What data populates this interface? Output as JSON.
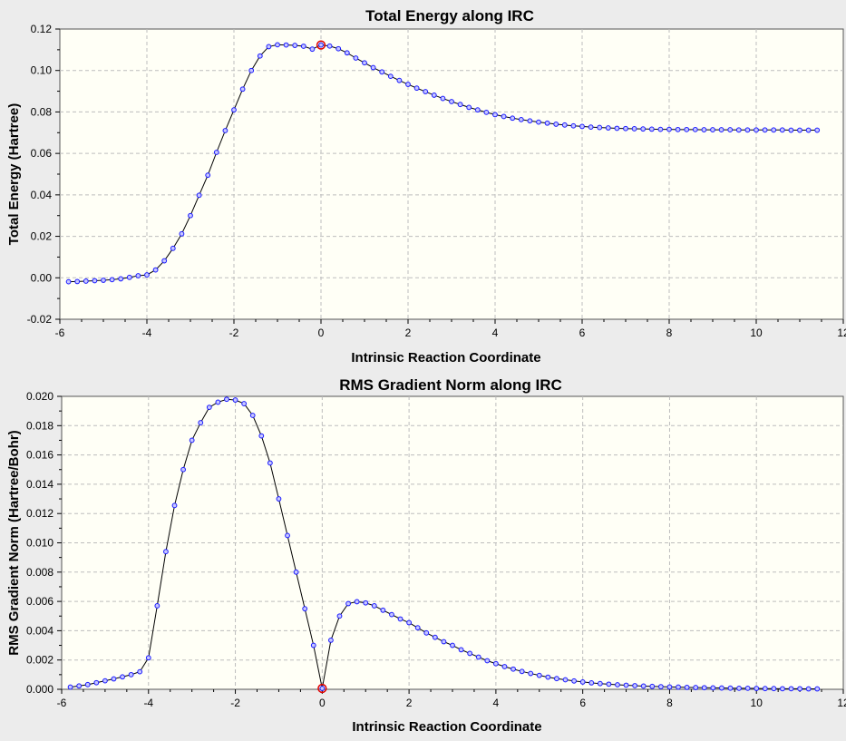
{
  "chart_data": [
    {
      "type": "line",
      "title": "Total Energy along IRC",
      "xlabel": "Intrinsic Reaction Coordinate",
      "ylabel": "Total Energy (Hartree)",
      "xlim": [
        -6,
        12
      ],
      "ylim": [
        -0.02,
        0.12
      ],
      "xticks": [
        -6,
        -4,
        -2,
        0,
        2,
        4,
        6,
        8,
        10,
        12
      ],
      "yticks": [
        -0.02,
        0.0,
        0.02,
        0.04,
        0.06,
        0.08,
        0.1,
        0.12
      ],
      "xtick_labels": [
        "-6",
        "-4",
        "-2",
        "0",
        "2",
        "4",
        "6",
        "8",
        "10",
        "12"
      ],
      "ytick_labels": [
        "-0.02",
        "0.00",
        "0.02",
        "0.04",
        "0.06",
        "0.08",
        "0.10",
        "0.12"
      ],
      "grid": true,
      "highlight_x": 0,
      "series": [
        {
          "x": [
            -5.8,
            -5.6,
            -5.4,
            -5.2,
            -5.0,
            -4.8,
            -4.6,
            -4.4,
            -4.2,
            -4.0,
            -3.8,
            -3.6,
            -3.4,
            -3.2,
            -3.0,
            -2.8,
            -2.6,
            -2.4,
            -2.2,
            -2.0,
            -1.8,
            -1.6,
            -1.4,
            -1.2,
            -1.0,
            -0.8,
            -0.6,
            -0.4,
            -0.2,
            0.0,
            0.2,
            0.4,
            0.6,
            0.8,
            1.0,
            1.2,
            1.4,
            1.6,
            1.8,
            2.0,
            2.2,
            2.4,
            2.6,
            2.8,
            3.0,
            3.2,
            3.4,
            3.6,
            3.8,
            4.0,
            4.2,
            4.4,
            4.6,
            4.8,
            5.0,
            5.2,
            5.4,
            5.6,
            5.8,
            6.0,
            6.2,
            6.4,
            6.6,
            6.8,
            7.0,
            7.2,
            7.4,
            7.6,
            7.8,
            8.0,
            8.2,
            8.4,
            8.6,
            8.8,
            9.0,
            9.2,
            9.4,
            9.6,
            9.8,
            10.0,
            10.2,
            10.4,
            10.6,
            10.8,
            11.0,
            11.2,
            11.4
          ],
          "y": [
            -0.0019,
            -0.0018,
            -0.0016,
            -0.0014,
            -0.0012,
            -0.0009,
            -0.0005,
            0.0002,
            0.001,
            0.0014,
            0.0038,
            0.0082,
            0.0142,
            0.0212,
            0.03,
            0.0398,
            0.0495,
            0.0605,
            0.071,
            0.081,
            0.091,
            0.1,
            0.107,
            0.1115,
            0.1124,
            0.1123,
            0.1121,
            0.1117,
            0.1103,
            0.1123,
            0.1118,
            0.1105,
            0.1085,
            0.106,
            0.1037,
            0.1014,
            0.0993,
            0.0972,
            0.0952,
            0.0933,
            0.0915,
            0.0898,
            0.0881,
            0.0865,
            0.085,
            0.0836,
            0.0822,
            0.081,
            0.0798,
            0.0787,
            0.0778,
            0.077,
            0.0763,
            0.0757,
            0.0751,
            0.0746,
            0.0741,
            0.0737,
            0.0733,
            0.073,
            0.0727,
            0.0725,
            0.0723,
            0.0721,
            0.072,
            0.0719,
            0.0718,
            0.0717,
            0.0716,
            0.0716,
            0.0715,
            0.0715,
            0.0715,
            0.0714,
            0.0714,
            0.0714,
            0.0714,
            0.0713,
            0.0713,
            0.0713,
            0.0713,
            0.0713,
            0.0713,
            0.0712,
            0.0712,
            0.0712,
            0.0712
          ]
        }
      ]
    },
    {
      "type": "line",
      "title": "RMS Gradient Norm along IRC",
      "xlabel": "Intrinsic Reaction Coordinate",
      "ylabel": "RMS Gradient Norm (Hartree/Bohr)",
      "xlim": [
        -6,
        12
      ],
      "ylim": [
        0,
        0.02
      ],
      "xticks": [
        -6,
        -4,
        -2,
        0,
        2,
        4,
        6,
        8,
        10,
        12
      ],
      "yticks": [
        0.0,
        0.002,
        0.004,
        0.006,
        0.008,
        0.01,
        0.012,
        0.014,
        0.016,
        0.018,
        0.02
      ],
      "xtick_labels": [
        "-6",
        "-4",
        "-2",
        "0",
        "2",
        "4",
        "6",
        "8",
        "10",
        "12"
      ],
      "ytick_labels": [
        "0.000",
        "0.002",
        "0.004",
        "0.006",
        "0.008",
        "0.010",
        "0.012",
        "0.014",
        "0.016",
        "0.018",
        "0.020"
      ],
      "grid": true,
      "highlight_x": 0,
      "series": [
        {
          "x": [
            -5.8,
            -5.6,
            -5.4,
            -5.2,
            -5.0,
            -4.8,
            -4.6,
            -4.4,
            -4.2,
            -4.0,
            -3.8,
            -3.6,
            -3.4,
            -3.2,
            -3.0,
            -2.8,
            -2.6,
            -2.4,
            -2.2,
            -2.0,
            -1.8,
            -1.6,
            -1.4,
            -1.2,
            -1.0,
            -0.8,
            -0.6,
            -0.4,
            -0.2,
            0.0,
            0.2,
            0.4,
            0.6,
            0.8,
            1.0,
            1.2,
            1.4,
            1.6,
            1.8,
            2.0,
            2.2,
            2.4,
            2.6,
            2.8,
            3.0,
            3.2,
            3.4,
            3.6,
            3.8,
            4.0,
            4.2,
            4.4,
            4.6,
            4.8,
            5.0,
            5.2,
            5.4,
            5.6,
            5.8,
            6.0,
            6.2,
            6.4,
            6.6,
            6.8,
            7.0,
            7.2,
            7.4,
            7.6,
            7.8,
            8.0,
            8.2,
            8.4,
            8.6,
            8.8,
            9.0,
            9.2,
            9.4,
            9.6,
            9.8,
            10.0,
            10.2,
            10.4,
            10.6,
            10.8,
            11.0,
            11.2,
            11.4
          ],
          "y": [
            0.00015,
            0.00023,
            0.00032,
            0.00045,
            0.00058,
            0.00071,
            0.00085,
            0.001,
            0.0012,
            0.00215,
            0.0057,
            0.0094,
            0.01255,
            0.015,
            0.017,
            0.0182,
            0.01925,
            0.0196,
            0.0198,
            0.01975,
            0.0195,
            0.0187,
            0.0173,
            0.01545,
            0.013,
            0.0105,
            0.008,
            0.0055,
            0.003,
            6e-05,
            0.00335,
            0.005,
            0.00585,
            0.00598,
            0.0059,
            0.0057,
            0.0054,
            0.0051,
            0.0048,
            0.00455,
            0.0042,
            0.00385,
            0.00355,
            0.00325,
            0.003,
            0.0027,
            0.00245,
            0.0022,
            0.00195,
            0.00175,
            0.00155,
            0.00138,
            0.00122,
            0.00108,
            0.00095,
            0.00083,
            0.00073,
            0.00065,
            0.00057,
            0.0005,
            0.00044,
            0.00039,
            0.00035,
            0.00031,
            0.00028,
            0.00025,
            0.00022,
            0.0002,
            0.00018,
            0.00016,
            0.00015,
            0.00013,
            0.00012,
            0.00011,
            0.0001,
            9e-05,
            8e-05,
            7e-05,
            7e-05,
            6e-05,
            5e-05,
            5e-05,
            4e-05,
            4e-05,
            4e-05,
            3e-05,
            3e-05
          ]
        }
      ]
    }
  ]
}
